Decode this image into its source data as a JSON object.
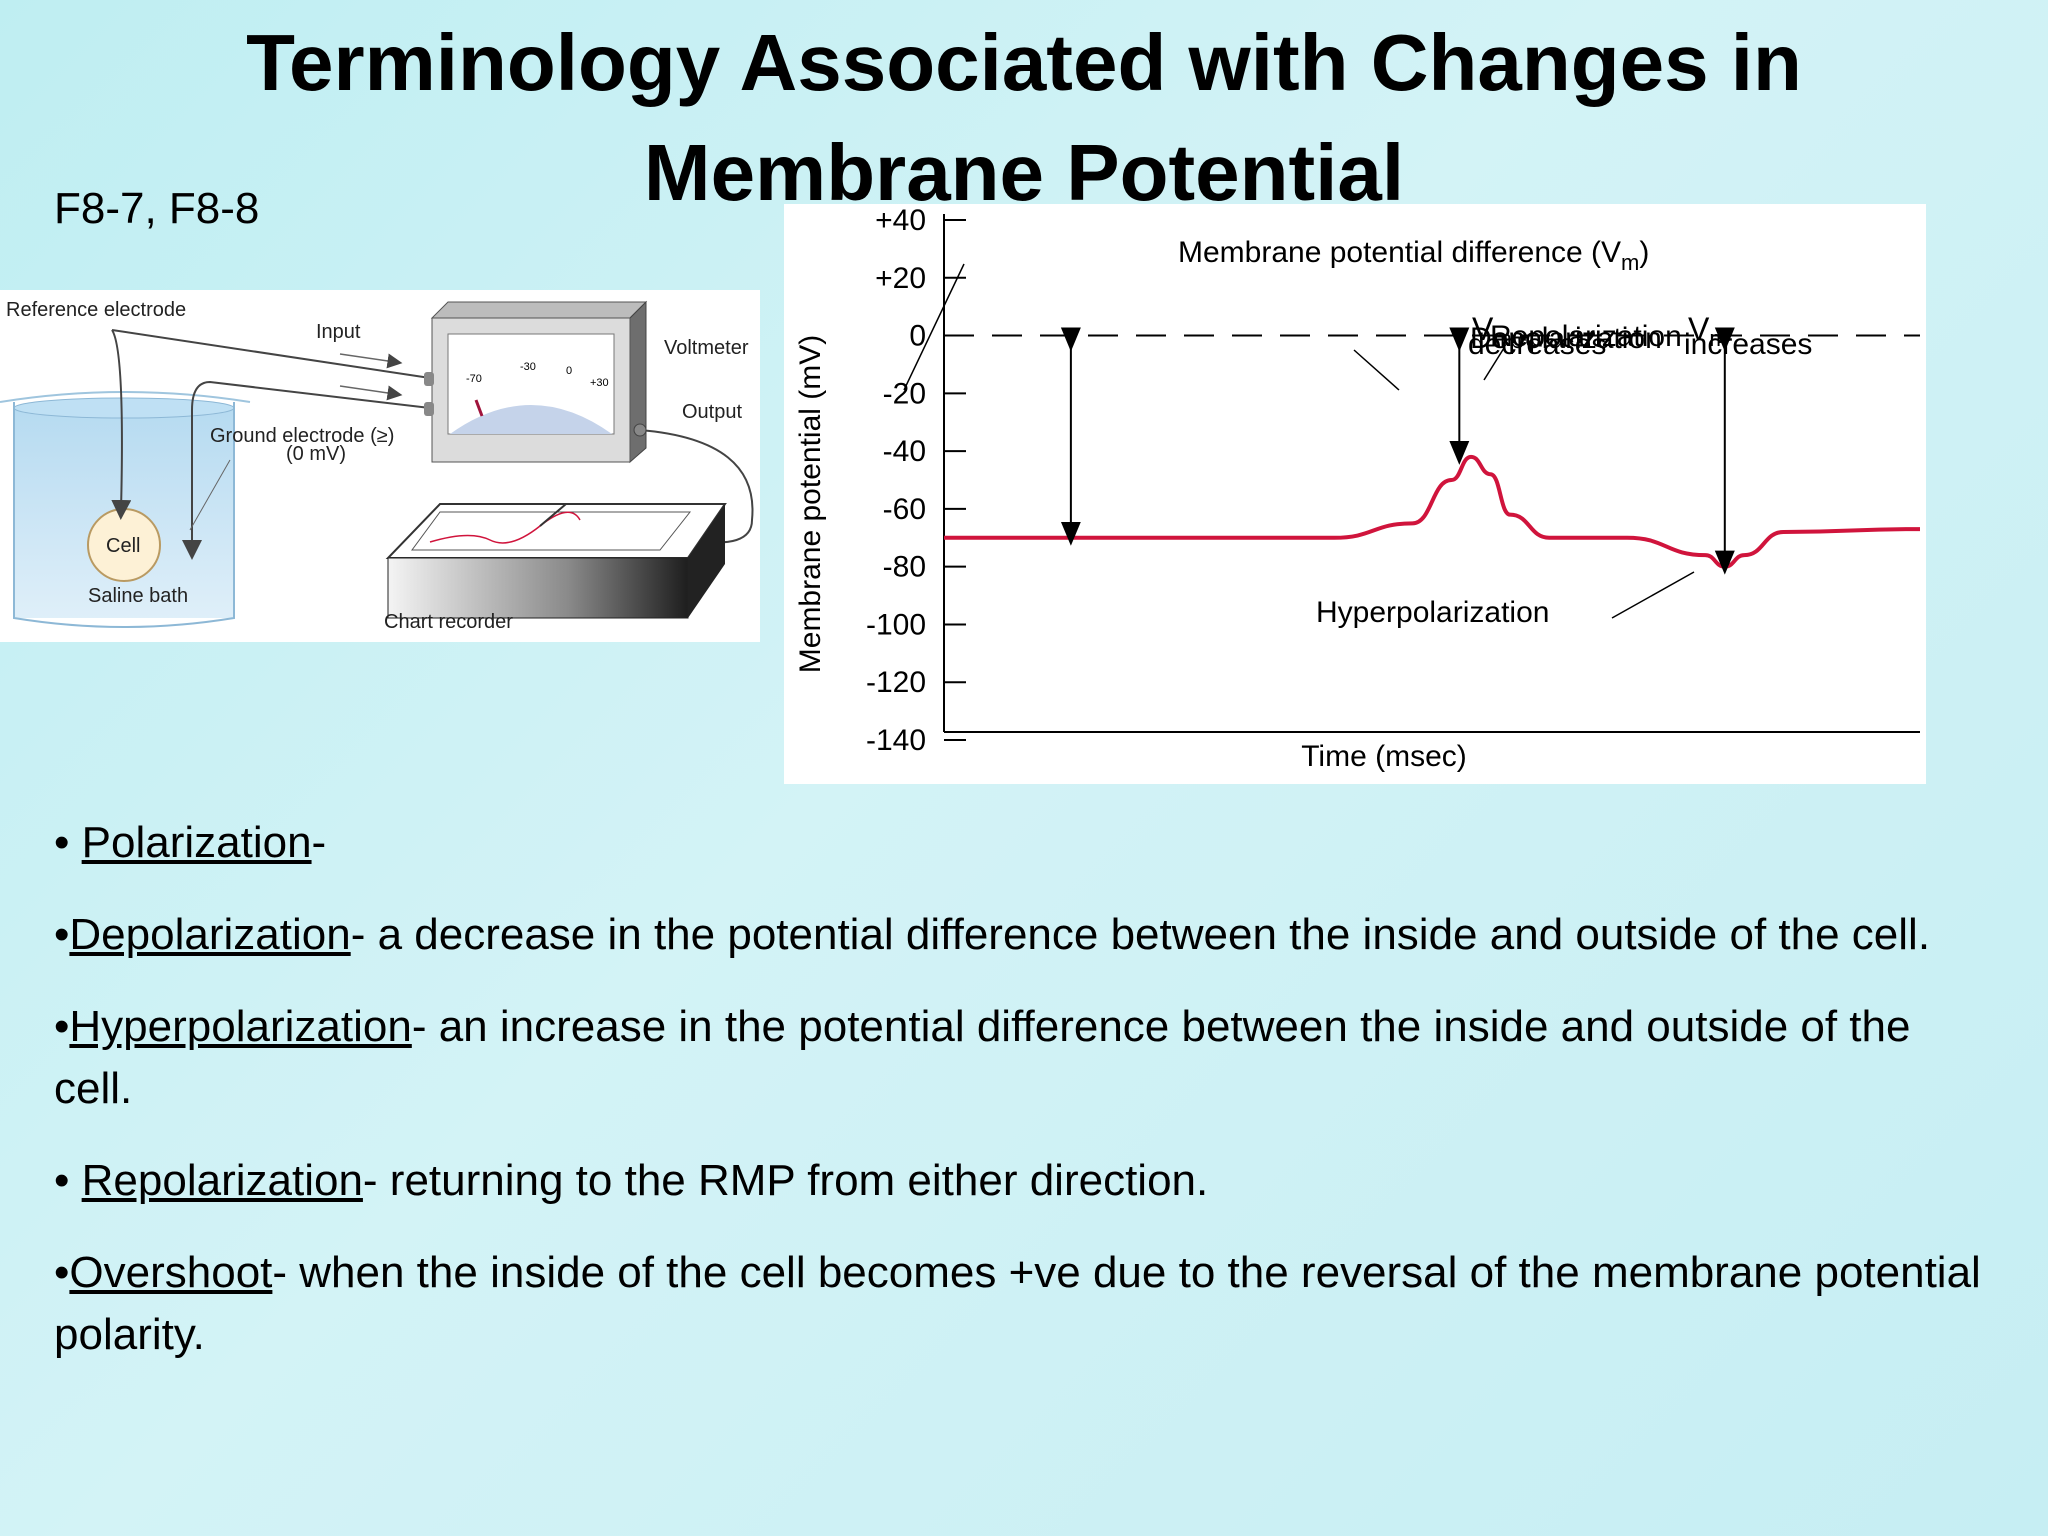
{
  "slide": {
    "title_line1": "Terminology Associated with Changes in",
    "title_line2": "Membrane Potential",
    "figure_ref": "F8-7, F8-8"
  },
  "apparatus": {
    "reference_electrode": "Reference electrode",
    "input": "Input",
    "voltmeter": "Voltmeter",
    "output": "Output",
    "ground_electrode": "Ground electrode (≥)",
    "ground_mv": "(0 mV)",
    "cell": "Cell",
    "saline_bath": "Saline bath",
    "chart_recorder": "Chart recorder",
    "dial_labels": [
      "-70",
      "-30",
      "0",
      "+30"
    ]
  },
  "chart_data": {
    "type": "line",
    "xlabel": "Time (msec)",
    "ylabel": "Membrane potential (mV)",
    "ylim": [
      -140,
      40
    ],
    "yticks": [
      "+40",
      "+20",
      "0",
      "-20",
      "-40",
      "-60",
      "-80",
      "-100",
      "-120",
      "-140"
    ],
    "line_color": "#d0143c",
    "annotations": {
      "vm_diff": "Membrane potential difference (V",
      "vm_diff_sub": "m",
      "vm_diff_close": ")",
      "vm_dec_v": "V",
      "vm_dec_sub": "m",
      "vm_dec_text": "decreases",
      "vm_inc_v": "V",
      "vm_inc_sub": "m",
      "vm_inc_text": "increases",
      "depolarization": "Depolarization",
      "repolarization": "Repolarization",
      "hyperpolarization": "Hyperpolarization"
    },
    "series": [
      {
        "x": [
          0,
          40,
          48,
          52,
          54,
          56,
          58,
          62,
          70,
          78,
          80,
          82,
          86,
          100
        ],
        "y": [
          -70,
          -70,
          -65,
          -50,
          -42,
          -48,
          -62,
          -70,
          -70,
          -76,
          -80,
          -76,
          -68,
          -67
        ]
      }
    ]
  },
  "bullets": [
    {
      "prefix": "• ",
      "term": "Polarization",
      "text": "-"
    },
    {
      "prefix": "•",
      "term": "Depolarization",
      "text": "- a decrease in the potential difference between the inside and outside of the cell."
    },
    {
      "prefix": "•",
      "term": "Hyperpolarization",
      "text": "- an increase in the potential difference between the inside and outside of the cell."
    },
    {
      "prefix": "• ",
      "term": "Repolarization",
      "text": "- returning to the RMP from either direction."
    },
    {
      "prefix": "•",
      "term": "Overshoot",
      "text": "- when the inside of the cell becomes +ve due to the reversal of the membrane potential polarity."
    }
  ]
}
